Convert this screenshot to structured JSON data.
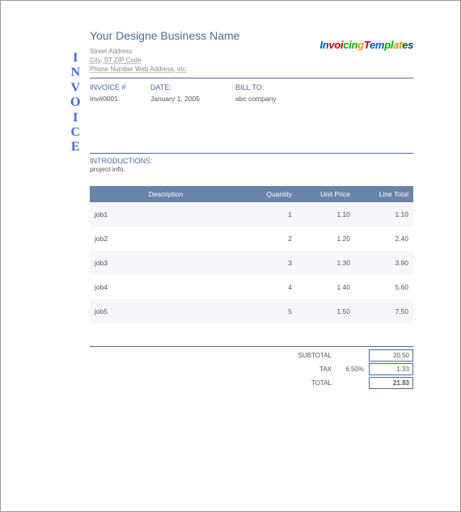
{
  "header": {
    "business_name": "Your Designe Business Name",
    "street": "Street Address",
    "city_line": "City, ST  ZIP Code",
    "contact_line": "Phone Number Web Address, etc.",
    "logo_text": "InvoicingTemplates"
  },
  "vertical_label": "INVOICE",
  "meta": {
    "invoice_label": "INVOICE #",
    "invoice_value": "Inv#0001",
    "date_label": "DATE:",
    "date_value": "January 1, 2005",
    "bill_label": "BILL TO:",
    "bill_value": "abc company"
  },
  "intro": {
    "label": "INTRODUCTIONS:",
    "value": "project info."
  },
  "table": {
    "columns": {
      "description": "Description",
      "quantity": "Quantity",
      "unit_price": "Unit Price",
      "line_total": "Line Total"
    },
    "header_bg": "#6a83a8",
    "header_fg": "#ffffff",
    "row_alt_bg": "#f5f7fa",
    "rows": [
      {
        "desc": "job1",
        "qty": "1",
        "unit": "1.10",
        "total": "1.10"
      },
      {
        "desc": "job2",
        "qty": "2",
        "unit": "1.20",
        "total": "2.40"
      },
      {
        "desc": "job3",
        "qty": "3",
        "unit": "1.30",
        "total": "3.90"
      },
      {
        "desc": "job4",
        "qty": "4",
        "unit": "1.40",
        "total": "5.60"
      },
      {
        "desc": "job5",
        "qty": "5",
        "unit": "1.50",
        "total": "7.50"
      }
    ]
  },
  "totals": {
    "subtotal_label": "SUBTOTAL",
    "subtotal_value": "20.50",
    "tax_label": "TAX",
    "tax_rate": "6.50%",
    "tax_value": "1.33",
    "total_label": "TOTAL",
    "total_value": "21.83"
  },
  "colors": {
    "accent": "#4a6a9a",
    "text": "#555555"
  }
}
